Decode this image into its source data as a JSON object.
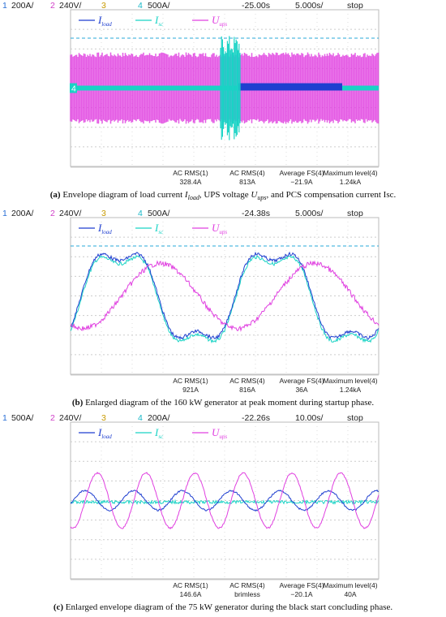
{
  "panels": [
    {
      "header": {
        "channels": [
          {
            "num": "1",
            "scale": "200A/",
            "color": "#2a6fd6"
          },
          {
            "num": "2",
            "scale": "240V/",
            "color": "#d040c8"
          },
          {
            "num": "3",
            "color": "#c89a00"
          },
          {
            "num": "4",
            "scale": "500A/",
            "color": "#18b8c8"
          }
        ],
        "time": "-25.00s",
        "timebase": "5.000s/",
        "status": "stop"
      },
      "legend": [
        {
          "name": "I",
          "sub": "load",
          "color": "#1f3fd0"
        },
        {
          "name": "I",
          "sub": "sc",
          "color": "#19d3c5"
        },
        {
          "name": "U",
          "sub": "ups",
          "color": "#e040e0"
        }
      ],
      "marker": "4",
      "measurements": [
        {
          "label": "AC RMS(1)",
          "value": "328.4A"
        },
        {
          "label": "AC RMS(4)",
          "value": "813A"
        },
        {
          "label": "Average FS(4)",
          "value": "−21.9A"
        },
        {
          "label": "Maximum level(4)",
          "value": "1.24kA"
        }
      ],
      "caption": [
        {
          "text": "(a)",
          "style": "bold"
        },
        {
          "text": " Envelope diagram of load current "
        },
        {
          "text": "I",
          "style": "italic"
        },
        {
          "text": "load",
          "style": "sub"
        },
        {
          "text": ", UPS voltage "
        },
        {
          "text": "U",
          "style": "italic"
        },
        {
          "text": "ups",
          "style": "sub"
        },
        {
          "text": ", and PCS compensation current Isc."
        }
      ]
    },
    {
      "header": {
        "channels": [
          {
            "num": "1",
            "scale": "200A/",
            "color": "#2a6fd6"
          },
          {
            "num": "2",
            "scale": "240V/",
            "color": "#d040c8"
          },
          {
            "num": "3",
            "color": "#c89a00"
          },
          {
            "num": "4",
            "scale": "500A/",
            "color": "#18b8c8"
          }
        ],
        "time": "-24.38s",
        "timebase": "5.000s/",
        "status": "stop"
      },
      "legend": [
        {
          "name": "I",
          "sub": "load",
          "color": "#1f3fd0"
        },
        {
          "name": "I",
          "sub": "sc",
          "color": "#19d3c5"
        },
        {
          "name": "U",
          "sub": "ups",
          "color": "#e040e0"
        }
      ],
      "measurements": [
        {
          "label": "AC RMS(1)",
          "value": "921A"
        },
        {
          "label": "AC RMS(4)",
          "value": "816A"
        },
        {
          "label": "Average FS(4)",
          "value": "36A"
        },
        {
          "label": "Maximum level(4)",
          "value": "1.24kA"
        }
      ],
      "caption": [
        {
          "text": "(b)",
          "style": "bold"
        },
        {
          "text": " Enlarged diagram of the 160 kW generator at peak moment during startup phase."
        }
      ]
    },
    {
      "header": {
        "channels": [
          {
            "num": "1",
            "scale": "500A/",
            "color": "#2a6fd6"
          },
          {
            "num": "2",
            "scale": "240V/",
            "color": "#d040c8"
          },
          {
            "num": "3",
            "color": "#c89a00"
          },
          {
            "num": "4",
            "scale": "200A/",
            "color": "#18b8c8"
          }
        ],
        "time": "-22.26s",
        "timebase": "10.00s/",
        "status": "stop"
      },
      "legend": [
        {
          "name": "I",
          "sub": "load",
          "color": "#1f3fd0"
        },
        {
          "name": "I",
          "sub": "sc",
          "color": "#19d3c5"
        },
        {
          "name": "U",
          "sub": "ups",
          "color": "#e040e0"
        }
      ],
      "measurements": [
        {
          "label": "AC RMS(1)",
          "value": "146.6A"
        },
        {
          "label": "AC RMS(4)",
          "value": "brimless"
        },
        {
          "label": "Average FS(4)",
          "value": "−20.1A"
        },
        {
          "label": "Maximum level(4)",
          "value": "40A"
        }
      ],
      "caption": [
        {
          "text": "(c)",
          "style": "bold"
        },
        {
          "text": " Enlarged envelope diagram of the 75 kW generator during the black start concluding phase."
        }
      ]
    }
  ]
}
